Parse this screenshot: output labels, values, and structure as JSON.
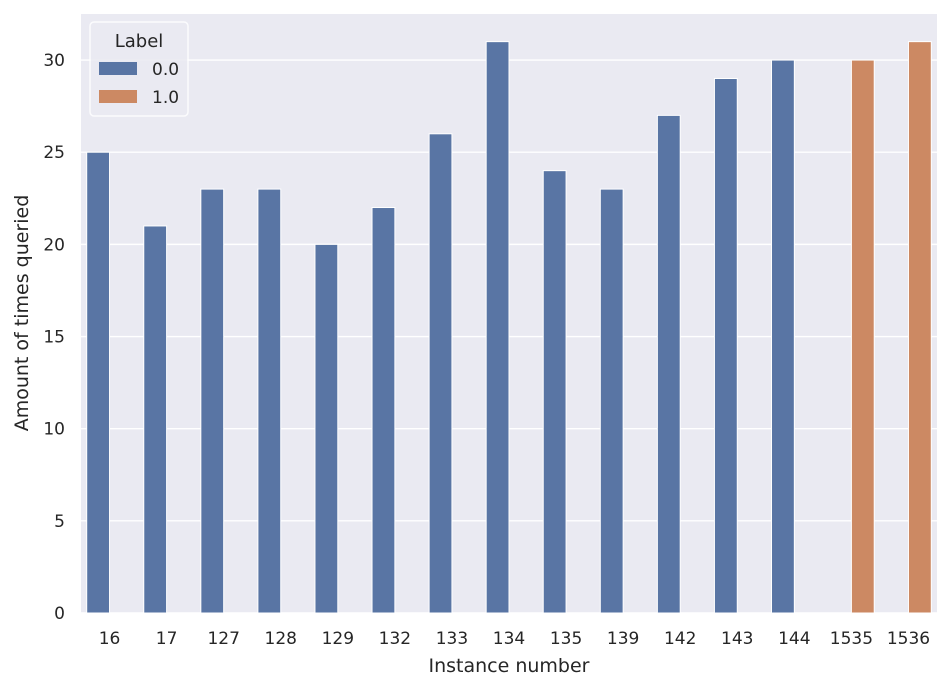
{
  "chart_data": {
    "type": "bar",
    "xlabel": "Instance number",
    "ylabel": "Amount of times queried",
    "ylim": [
      0,
      32.5
    ],
    "yticks": [
      0,
      5,
      10,
      15,
      20,
      25,
      30
    ],
    "categories": [
      "16",
      "17",
      "127",
      "128",
      "129",
      "132",
      "133",
      "134",
      "135",
      "139",
      "142",
      "143",
      "144",
      "1535",
      "1536"
    ],
    "series": [
      {
        "name": "0.0",
        "color": "#5975a4",
        "values": [
          25,
          21,
          23,
          23,
          20,
          22,
          26,
          31,
          24,
          23,
          27,
          29,
          30,
          null,
          null
        ]
      },
      {
        "name": "1.0",
        "color": "#cc8963",
        "values": [
          null,
          null,
          null,
          null,
          null,
          null,
          null,
          null,
          null,
          null,
          null,
          null,
          null,
          30,
          31
        ]
      }
    ],
    "legend": {
      "title": "Label",
      "position": "top-left"
    },
    "grid": true,
    "background": "#eaeaf2"
  }
}
